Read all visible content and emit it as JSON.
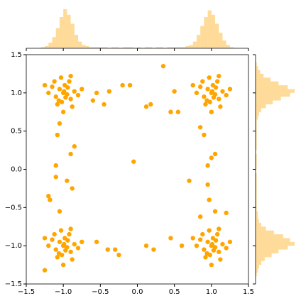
{
  "chart_data": {
    "type": "scatter",
    "color": "#ffa500",
    "x": [
      -1.0,
      -0.95,
      -1.05,
      -0.9,
      -1.1,
      -0.98,
      -1.02,
      -0.85,
      -1.15,
      -0.92,
      -1.08,
      -0.97,
      -1.2,
      -0.8,
      -1.03,
      -0.88,
      -1.12,
      -0.94,
      -1.06,
      -0.99,
      -1.25,
      -0.75,
      -1.0,
      -0.9,
      1.0,
      1.05,
      0.95,
      1.1,
      0.9,
      1.02,
      0.98,
      1.15,
      0.85,
      1.08,
      0.92,
      1.03,
      0.8,
      1.2,
      0.97,
      1.12,
      0.88,
      1.06,
      0.94,
      1.01,
      0.75,
      1.25,
      1.0,
      1.1,
      -1.0,
      -0.95,
      -1.05,
      -0.9,
      -1.1,
      -0.98,
      -1.02,
      -0.85,
      -1.15,
      -0.92,
      -1.08,
      -0.97,
      -1.2,
      -0.8,
      -1.03,
      -0.88,
      -1.12,
      -0.94,
      -1.06,
      -0.99,
      -1.25,
      -0.75,
      -1.0,
      -0.9,
      1.0,
      1.05,
      0.95,
      1.1,
      0.9,
      1.02,
      0.98,
      1.15,
      0.85,
      1.08,
      0.92,
      1.03,
      0.8,
      1.2,
      0.97,
      1.12,
      0.88,
      1.06,
      0.94,
      1.01,
      0.75,
      1.25,
      1.0,
      1.1,
      -0.55,
      -0.45,
      -0.6,
      -0.38,
      -0.2,
      -0.1,
      0.12,
      0.18,
      0.35,
      0.45,
      0.55,
      0.5,
      -0.05,
      -1.05,
      -1.08,
      -0.85,
      -0.9,
      -1.1,
      -0.95,
      -1.1,
      -0.88,
      -1.2,
      -1.18,
      -1.05,
      0.85,
      0.9,
      1.05,
      1.0,
      0.95,
      0.7,
      0.95,
      1.05,
      0.97,
      0.85,
      -0.55,
      -0.4,
      -0.3,
      -0.25,
      0.12,
      0.22,
      0.45,
      0.6,
      1.2,
      -1.25
    ],
    "y": [
      1.0,
      0.98,
      1.05,
      0.92,
      0.95,
      1.1,
      0.88,
      1.02,
      1.08,
      1.15,
      0.85,
      0.94,
      1.0,
      0.97,
      1.2,
      0.82,
      1.15,
      1.07,
      0.9,
      1.02,
      1.1,
      1.05,
      0.75,
      1.22,
      1.0,
      0.98,
      1.05,
      0.92,
      0.95,
      1.1,
      0.88,
      1.02,
      1.08,
      1.15,
      0.85,
      0.94,
      1.0,
      0.97,
      1.2,
      0.82,
      1.15,
      1.07,
      0.9,
      1.02,
      1.1,
      1.05,
      0.75,
      1.22,
      -1.0,
      -1.02,
      -0.95,
      -1.08,
      -1.05,
      -0.9,
      -1.12,
      -0.98,
      -0.92,
      -0.85,
      -1.15,
      -1.06,
      -1.0,
      -1.03,
      -0.8,
      -1.18,
      -0.85,
      -0.93,
      -1.1,
      -0.98,
      -0.9,
      -0.95,
      -1.25,
      -0.78,
      -1.0,
      -1.02,
      -0.95,
      -1.08,
      -1.05,
      -0.9,
      -1.12,
      -0.98,
      -0.92,
      -0.85,
      -1.15,
      -1.06,
      -1.0,
      -1.03,
      -0.8,
      -1.18,
      -0.85,
      -0.93,
      -1.1,
      -0.98,
      -0.9,
      -0.95,
      -1.25,
      -0.78,
      1.0,
      0.85,
      0.9,
      1.02,
      1.1,
      1.1,
      0.82,
      0.85,
      1.35,
      0.75,
      0.75,
      1.02,
      0.1,
      0.6,
      0.45,
      0.3,
      0.2,
      0.05,
      -0.15,
      -0.1,
      -0.25,
      -0.35,
      -0.4,
      -0.55,
      0.55,
      0.45,
      0.2,
      0.15,
      0.05,
      -0.15,
      -0.2,
      -0.55,
      -0.4,
      -0.62,
      -0.95,
      -1.05,
      -1.05,
      -1.12,
      -1.0,
      -1.05,
      -0.9,
      -1.0,
      -0.57,
      -1.32
    ],
    "xlim": [
      -1.5,
      1.5
    ],
    "ylim": [
      -1.5,
      1.5
    ],
    "xticks": [
      {
        "value": -1.5,
        "label": "−1.5"
      },
      {
        "value": -1,
        "label": "−1.0"
      },
      {
        "value": -0.5,
        "label": "−0.5"
      },
      {
        "value": 0,
        "label": "0.0"
      },
      0.5,
      {
        "value": 1,
        "label": "1.0"
      },
      1.5
    ],
    "yticks": [
      {
        "value": -1.5,
        "label": "−1.5"
      },
      {
        "value": -1,
        "label": "−1.0"
      },
      {
        "value": -0.5,
        "label": "−0.5"
      },
      {
        "value": 0,
        "label": "0.0"
      },
      0.5,
      {
        "value": 1,
        "label": "1.0"
      },
      1.5
    ],
    "x_hist": {
      "bins": [
        -1.3,
        -1.25,
        -1.2,
        -1.15,
        -1.1,
        -1.05,
        -1.0,
        -0.95,
        -0.9,
        -0.85,
        -0.8,
        -0.75,
        -0.7,
        -0.65,
        -0.6,
        -0.55,
        -0.5,
        -0.45,
        -0.4,
        -0.35,
        -0.3,
        -0.25,
        -0.2,
        -0.15,
        -0.1,
        -0.05,
        0,
        0.05,
        0.1,
        0.15,
        0.2,
        0.25,
        0.3,
        0.35,
        0.4,
        0.45,
        0.5,
        0.55,
        0.6,
        0.65,
        0.7,
        0.75,
        0.8,
        0.85,
        0.9,
        0.95,
        1.0,
        1.05,
        1.1,
        1.15,
        1.2,
        1.25,
        1.3
      ],
      "counts": [
        1,
        2,
        5,
        10,
        18,
        28,
        35,
        30,
        22,
        12,
        6,
        3,
        2,
        1,
        1,
        1,
        1,
        1,
        0,
        1,
        1,
        0,
        1,
        1,
        1,
        0,
        1,
        0,
        1,
        1,
        0,
        1,
        1,
        0,
        1,
        1,
        1,
        1,
        1,
        2,
        3,
        6,
        12,
        20,
        28,
        34,
        30,
        22,
        14,
        7,
        3,
        1
      ]
    },
    "y_hist": {
      "bins": [
        -1.4,
        -1.35,
        -1.3,
        -1.25,
        -1.2,
        -1.15,
        -1.1,
        -1.05,
        -1.0,
        -0.95,
        -0.9,
        -0.85,
        -0.8,
        -0.75,
        -0.7,
        -0.65,
        -0.6,
        -0.55,
        -0.5,
        -0.45,
        -0.4,
        -0.35,
        -0.3,
        -0.25,
        -0.2,
        -0.15,
        -0.1,
        -0.05,
        0,
        0.05,
        0.1,
        0.15,
        0.2,
        0.25,
        0.3,
        0.35,
        0.4,
        0.45,
        0.5,
        0.55,
        0.6,
        0.65,
        0.7,
        0.75,
        0.8,
        0.85,
        0.9,
        0.95,
        1.0,
        1.05,
        1.1,
        1.15,
        1.2,
        1.25,
        1.3,
        1.35,
        1.4
      ],
      "counts": [
        1,
        2,
        3,
        5,
        8,
        14,
        20,
        28,
        34,
        30,
        24,
        16,
        9,
        5,
        3,
        2,
        2,
        1,
        1,
        1,
        1,
        1,
        1,
        1,
        1,
        1,
        1,
        0,
        1,
        1,
        1,
        1,
        0,
        1,
        1,
        1,
        1,
        1,
        1,
        1,
        1,
        2,
        3,
        5,
        9,
        15,
        22,
        30,
        34,
        28,
        20,
        13,
        7,
        4,
        2,
        1
      ]
    }
  }
}
